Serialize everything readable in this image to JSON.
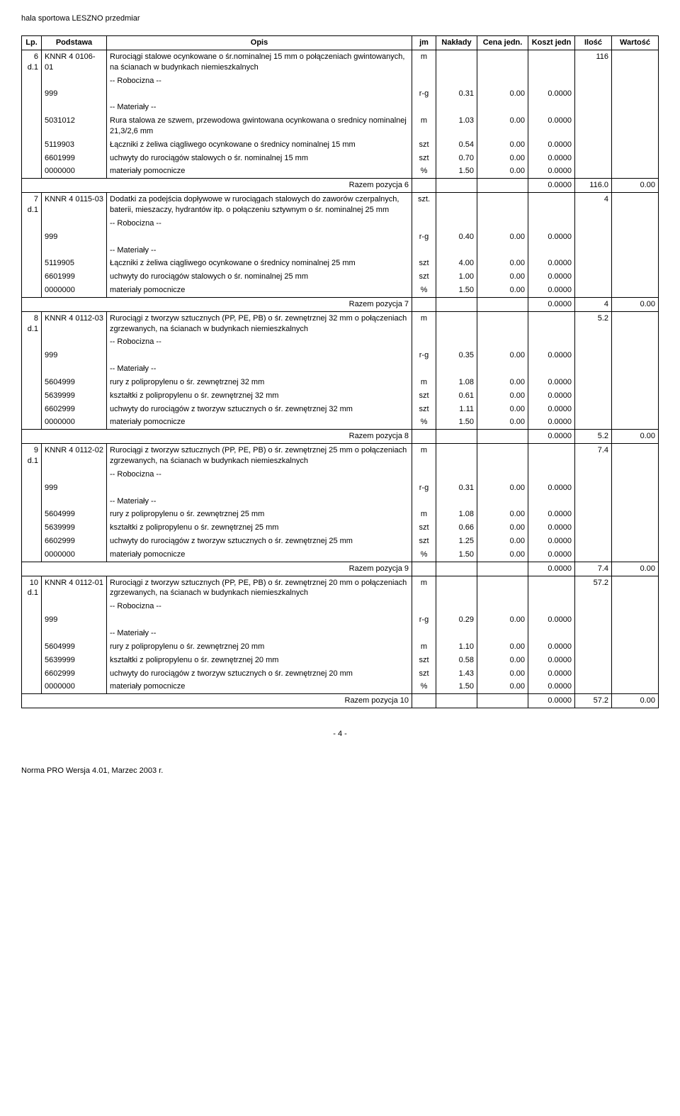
{
  "doc_title": "hala sportowa LESZNO przedmiar",
  "headers": {
    "lp": "Lp.",
    "podstawa": "Podstawa",
    "opis": "Opis",
    "jm": "jm",
    "naklady": "Nakłady",
    "cena": "Cena jedn.",
    "koszt": "Koszt jedn",
    "ilosc": "Ilość",
    "wartosc": "Wartość"
  },
  "rows": [
    {
      "type": "main",
      "lp": "6 d.1",
      "podstawa": "KNNR 4 0106-01",
      "opis": "Rurociągi stalowe ocynkowane o śr.nominalnej 15 mm o połączeniach gwintowanych, na ścianach w budynkach niemieszkalnych",
      "jm": "m",
      "ilosc": "116"
    },
    {
      "type": "sub",
      "opis": "-- Robocizna --"
    },
    {
      "type": "line",
      "podstawa": "999",
      "opis": "",
      "jm": "r-g",
      "naklady": "0.31",
      "cena": "0.00",
      "koszt": "0.0000"
    },
    {
      "type": "sub",
      "opis": "-- Materiały --"
    },
    {
      "type": "line",
      "podstawa": "5031012",
      "opis": "Rura stalowa ze szwem, przewodowa gwintowana ocynkowana o srednicy nominalnej 21,3/2,6 mm",
      "jm": "m",
      "naklady": "1.03",
      "cena": "0.00",
      "koszt": "0.0000"
    },
    {
      "type": "line",
      "podstawa": "5119903",
      "opis": "Łączniki z żeliwa ciągliwego ocynkowane o średnicy nominalnej 15 mm",
      "jm": "szt",
      "naklady": "0.54",
      "cena": "0.00",
      "koszt": "0.0000"
    },
    {
      "type": "line",
      "podstawa": "6601999",
      "opis": "uchwyty do rurociągów stalowych o śr. nominalnej 15 mm",
      "jm": "szt",
      "naklady": "0.70",
      "cena": "0.00",
      "koszt": "0.0000"
    },
    {
      "type": "line",
      "podstawa": "0000000",
      "opis": "materiały pomocnicze",
      "jm": "%",
      "naklady": "1.50",
      "cena": "0.00",
      "koszt": "0.0000"
    },
    {
      "type": "razem",
      "label": "Razem pozycja 6",
      "koszt": "0.0000",
      "ilosc": "116.0",
      "wartosc": "0.00"
    },
    {
      "type": "main",
      "lp": "7 d.1",
      "podstawa": "KNNR 4 0115-03",
      "opis": "Dodatki za podejścia dopływowe w rurociągach stalowych do zaworów czerpalnych, baterii, mieszaczy, hydrantów itp. o połączeniu sztywnym o śr. nominalnej 25 mm",
      "jm": "szt.",
      "ilosc": "4"
    },
    {
      "type": "sub",
      "opis": "-- Robocizna --"
    },
    {
      "type": "line",
      "podstawa": "999",
      "opis": "",
      "jm": "r-g",
      "naklady": "0.40",
      "cena": "0.00",
      "koszt": "0.0000"
    },
    {
      "type": "sub",
      "opis": "-- Materiały --"
    },
    {
      "type": "line",
      "podstawa": "5119905",
      "opis": "Łączniki z żeliwa ciągliwego ocynkowane o średnicy nominalnej 25 mm",
      "jm": "szt",
      "naklady": "4.00",
      "cena": "0.00",
      "koszt": "0.0000"
    },
    {
      "type": "line",
      "podstawa": "6601999",
      "opis": "uchwyty do rurociągów stalowych o śr. nominalnej 25 mm",
      "jm": "szt",
      "naklady": "1.00",
      "cena": "0.00",
      "koszt": "0.0000"
    },
    {
      "type": "line",
      "podstawa": "0000000",
      "opis": "materiały pomocnicze",
      "jm": "%",
      "naklady": "1.50",
      "cena": "0.00",
      "koszt": "0.0000"
    },
    {
      "type": "razem",
      "label": "Razem pozycja 7",
      "koszt": "0.0000",
      "ilosc": "4",
      "wartosc": "0.00"
    },
    {
      "type": "main",
      "lp": "8 d.1",
      "podstawa": "KNNR 4 0112-03",
      "opis": "Rurociągi z tworzyw sztucznych (PP, PE, PB) o śr. zewnętrznej 32 mm o połączeniach zgrzewanych, na ścianach w budynkach niemieszkalnych",
      "jm": "m",
      "ilosc": "5.2"
    },
    {
      "type": "sub",
      "opis": "-- Robocizna --"
    },
    {
      "type": "line",
      "podstawa": "999",
      "opis": "",
      "jm": "r-g",
      "naklady": "0.35",
      "cena": "0.00",
      "koszt": "0.0000"
    },
    {
      "type": "sub",
      "opis": "-- Materiały --"
    },
    {
      "type": "line",
      "podstawa": "5604999",
      "opis": "rury z polipropylenu o śr. zewnętrznej 32 mm",
      "jm": "m",
      "naklady": "1.08",
      "cena": "0.00",
      "koszt": "0.0000"
    },
    {
      "type": "line",
      "podstawa": "5639999",
      "opis": "kształtki z polipropylenu o śr. zewnętrznej 32 mm",
      "jm": "szt",
      "naklady": "0.61",
      "cena": "0.00",
      "koszt": "0.0000"
    },
    {
      "type": "line",
      "podstawa": "6602999",
      "opis": "uchwyty do rurociągów z tworzyw sztucznych o śr. zewnętrznej 32 mm",
      "jm": "szt",
      "naklady": "1.11",
      "cena": "0.00",
      "koszt": "0.0000"
    },
    {
      "type": "line",
      "podstawa": "0000000",
      "opis": "materiały pomocnicze",
      "jm": "%",
      "naklady": "1.50",
      "cena": "0.00",
      "koszt": "0.0000"
    },
    {
      "type": "razem",
      "label": "Razem pozycja 8",
      "koszt": "0.0000",
      "ilosc": "5.2",
      "wartosc": "0.00"
    },
    {
      "type": "main",
      "lp": "9 d.1",
      "podstawa": "KNNR 4 0112-02",
      "opis": "Rurociągi z tworzyw sztucznych (PP, PE, PB) o śr. zewnętrznej 25 mm o połączeniach zgrzewanych, na ścianach w budynkach niemieszkalnych",
      "jm": "m",
      "ilosc": "7.4"
    },
    {
      "type": "sub",
      "opis": "-- Robocizna --"
    },
    {
      "type": "line",
      "podstawa": "999",
      "opis": "",
      "jm": "r-g",
      "naklady": "0.31",
      "cena": "0.00",
      "koszt": "0.0000"
    },
    {
      "type": "sub",
      "opis": "-- Materiały --"
    },
    {
      "type": "line",
      "podstawa": "5604999",
      "opis": "rury z polipropylenu o śr. zewnętrznej 25 mm",
      "jm": "m",
      "naklady": "1.08",
      "cena": "0.00",
      "koszt": "0.0000"
    },
    {
      "type": "line",
      "podstawa": "5639999",
      "opis": "kształtki z polipropylenu o śr. zewnętrznej 25 mm",
      "jm": "szt",
      "naklady": "0.66",
      "cena": "0.00",
      "koszt": "0.0000"
    },
    {
      "type": "line",
      "podstawa": "6602999",
      "opis": "uchwyty do rurociągów z tworzyw sztucznych o śr. zewnętrznej 25 mm",
      "jm": "szt",
      "naklady": "1.25",
      "cena": "0.00",
      "koszt": "0.0000"
    },
    {
      "type": "line",
      "podstawa": "0000000",
      "opis": "materiały pomocnicze",
      "jm": "%",
      "naklady": "1.50",
      "cena": "0.00",
      "koszt": "0.0000"
    },
    {
      "type": "razem",
      "label": "Razem pozycja 9",
      "koszt": "0.0000",
      "ilosc": "7.4",
      "wartosc": "0.00"
    },
    {
      "type": "main",
      "lp": "10 d.1",
      "podstawa": "KNNR 4 0112-01",
      "opis": "Rurociągi z tworzyw sztucznych (PP, PE, PB) o śr. zewnętrznej 20 mm o połączeniach zgrzewanych, na ścianach w budynkach niemieszkalnych",
      "jm": "m",
      "ilosc": "57.2"
    },
    {
      "type": "sub",
      "opis": "-- Robocizna --"
    },
    {
      "type": "line",
      "podstawa": "999",
      "opis": "",
      "jm": "r-g",
      "naklady": "0.29",
      "cena": "0.00",
      "koszt": "0.0000"
    },
    {
      "type": "sub",
      "opis": "-- Materiały --"
    },
    {
      "type": "line",
      "podstawa": "5604999",
      "opis": "rury z polipropylenu o śr. zewnętrznej 20 mm",
      "jm": "m",
      "naklady": "1.10",
      "cena": "0.00",
      "koszt": "0.0000"
    },
    {
      "type": "line",
      "podstawa": "5639999",
      "opis": "kształtki z polipropylenu o śr. zewnętrznej 20 mm",
      "jm": "szt",
      "naklady": "0.58",
      "cena": "0.00",
      "koszt": "0.0000"
    },
    {
      "type": "line",
      "podstawa": "6602999",
      "opis": "uchwyty do rurociągów z tworzyw sztucznych o śr. zewnętrznej 20 mm",
      "jm": "szt",
      "naklady": "1.43",
      "cena": "0.00",
      "koszt": "0.0000"
    },
    {
      "type": "line",
      "podstawa": "0000000",
      "opis": "materiały pomocnicze",
      "jm": "%",
      "naklady": "1.50",
      "cena": "0.00",
      "koszt": "0.0000"
    },
    {
      "type": "razem",
      "label": "Razem pozycja 10",
      "koszt": "0.0000",
      "ilosc": "57.2",
      "wartosc": "0.00"
    }
  ],
  "page_num": "- 4 -",
  "footnote": "Norma PRO Wersja 4.01, Marzec 2003 r."
}
